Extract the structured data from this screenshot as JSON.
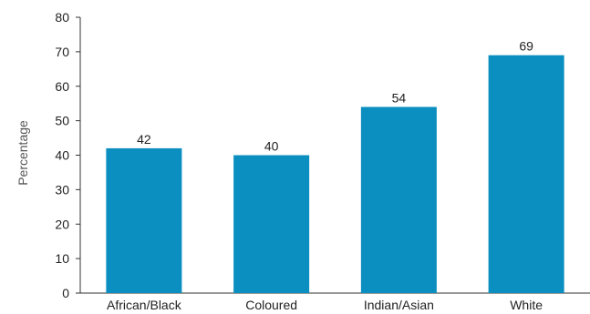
{
  "chart_data": {
    "type": "bar",
    "categories": [
      "African/Black",
      "Coloured",
      "Indian/Asian",
      "White"
    ],
    "values": [
      42,
      40,
      54,
      69
    ],
    "ylabel": "Percentage",
    "ylim": [
      0,
      80
    ],
    "yticks": [
      0,
      10,
      20,
      30,
      40,
      50,
      60,
      70,
      80
    ],
    "grid": false,
    "bar_color": "#0b8ec0"
  }
}
